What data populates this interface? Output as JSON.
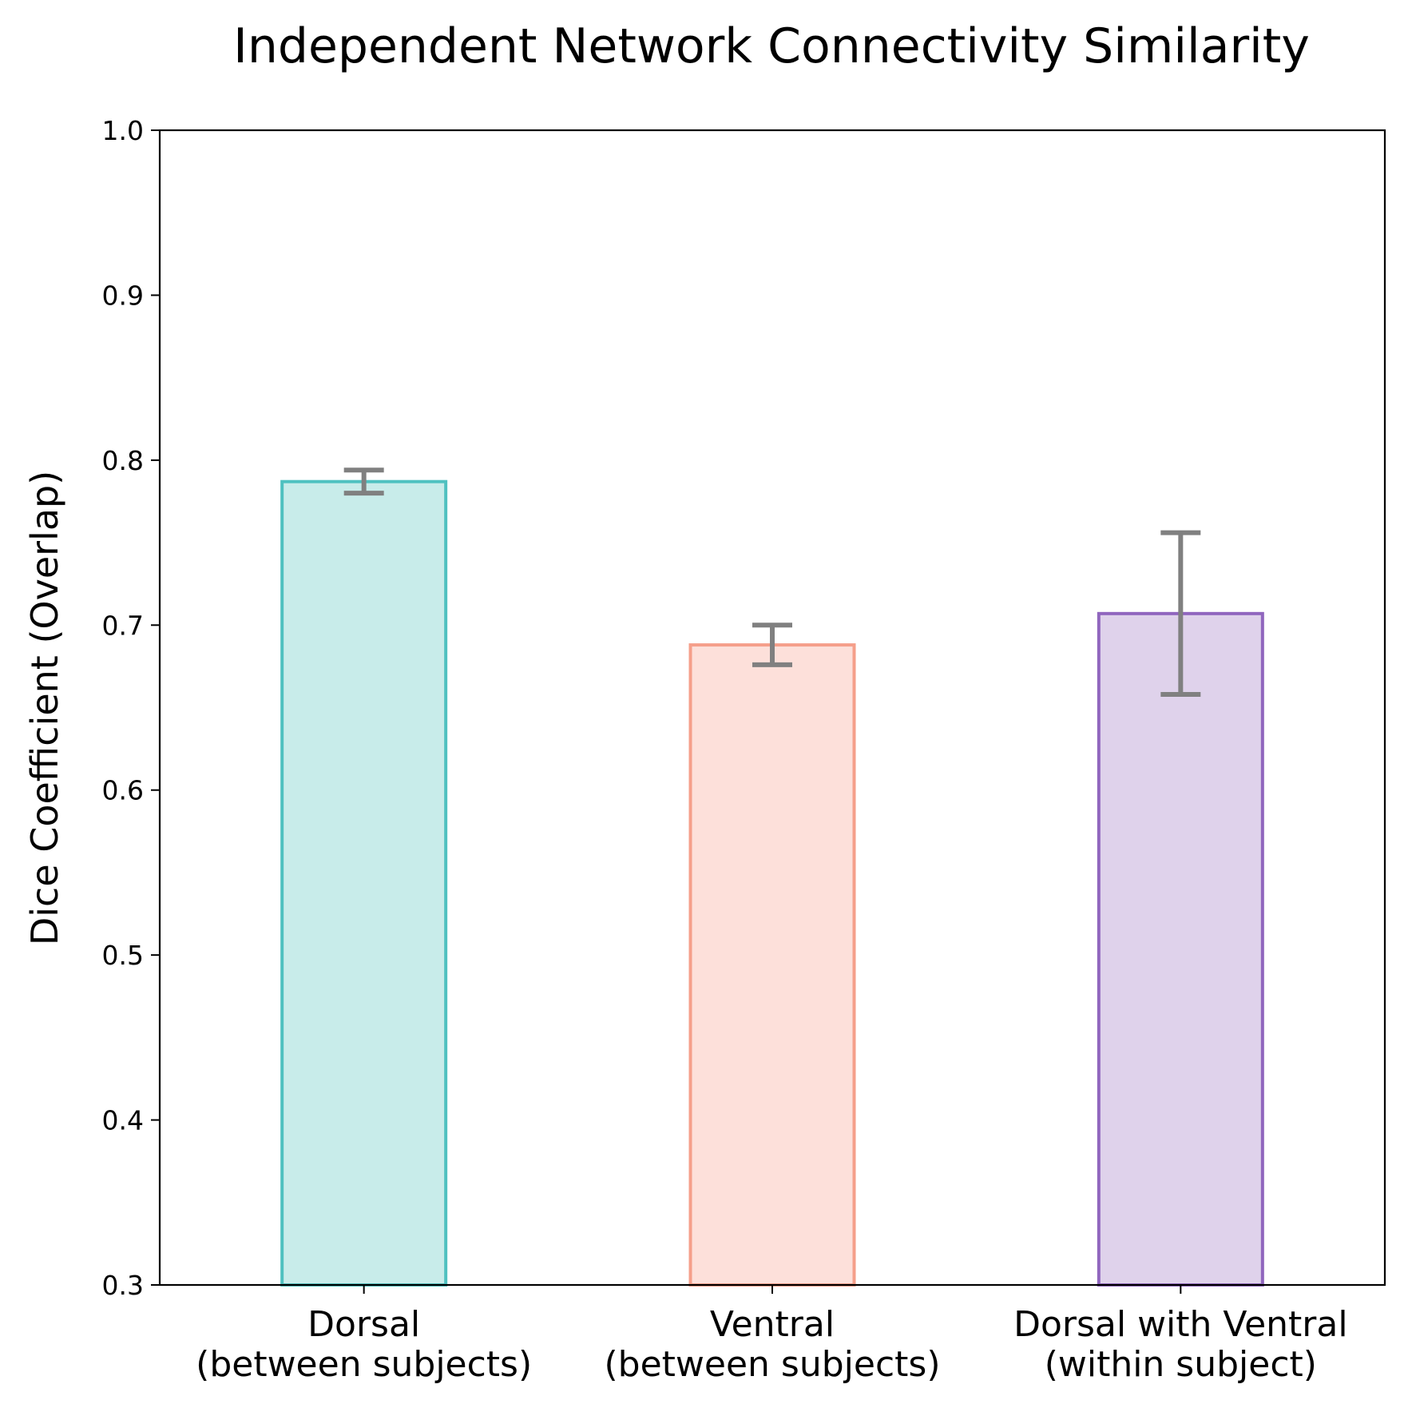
{
  "chart_data": {
    "type": "bar",
    "title": "Independent Network Connectivity Similarity",
    "xlabel": "",
    "ylabel": "Dice Coefficient (Overlap)",
    "ylim": [
      0.3,
      1.0
    ],
    "yticks": [
      "0.3",
      "0.4",
      "0.5",
      "0.6",
      "0.7",
      "0.8",
      "0.9",
      "1.0"
    ],
    "grid": false,
    "categories": [
      [
        "Dorsal",
        "(between subjects)"
      ],
      [
        "Ventral",
        "(between subjects)"
      ],
      [
        "Dorsal with Ventral",
        "(within subject)"
      ]
    ],
    "values": [
      0.787,
      0.688,
      0.707
    ],
    "errors": [
      0.007,
      0.012,
      0.049
    ],
    "colors": {
      "fill": [
        "#c8ecea",
        "#fde0da",
        "#dfd2eb"
      ],
      "edge": [
        "#4fc1c0",
        "#f59f8a",
        "#9066be"
      ],
      "errorbar": "#808080"
    }
  }
}
